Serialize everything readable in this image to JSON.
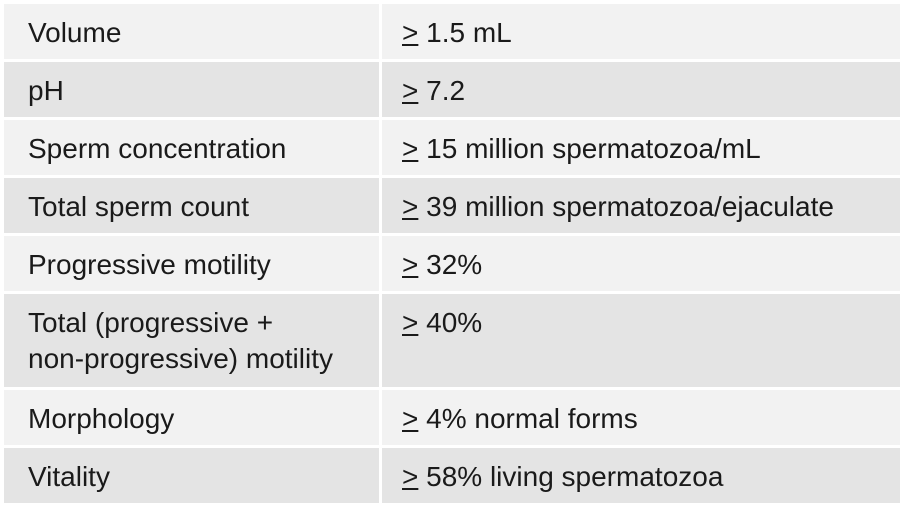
{
  "table": {
    "rows": [
      {
        "parameter": "Volume",
        "symbol": ">",
        "value": " 1.5 mL"
      },
      {
        "parameter": "pH",
        "symbol": ">",
        "value": " 7.2"
      },
      {
        "parameter": "Sperm concentration",
        "symbol": ">",
        "value": " 15 million spermatozoa/mL"
      },
      {
        "parameter": "Total sperm count",
        "symbol": ">",
        "value": " 39 million spermatozoa/ejaculate"
      },
      {
        "parameter": "Progressive motility",
        "symbol": ">",
        "value": " 32%"
      },
      {
        "parameter_line1": "Total (progressive +",
        "parameter_line2": "non-progressive) motility",
        "symbol": ">",
        "value": " 40%"
      },
      {
        "parameter": "Morphology",
        "symbol": ">",
        "value": " 4% normal forms"
      },
      {
        "parameter": "Vitality",
        "symbol": ">",
        "value": " 58% living spermatozoa"
      }
    ]
  }
}
